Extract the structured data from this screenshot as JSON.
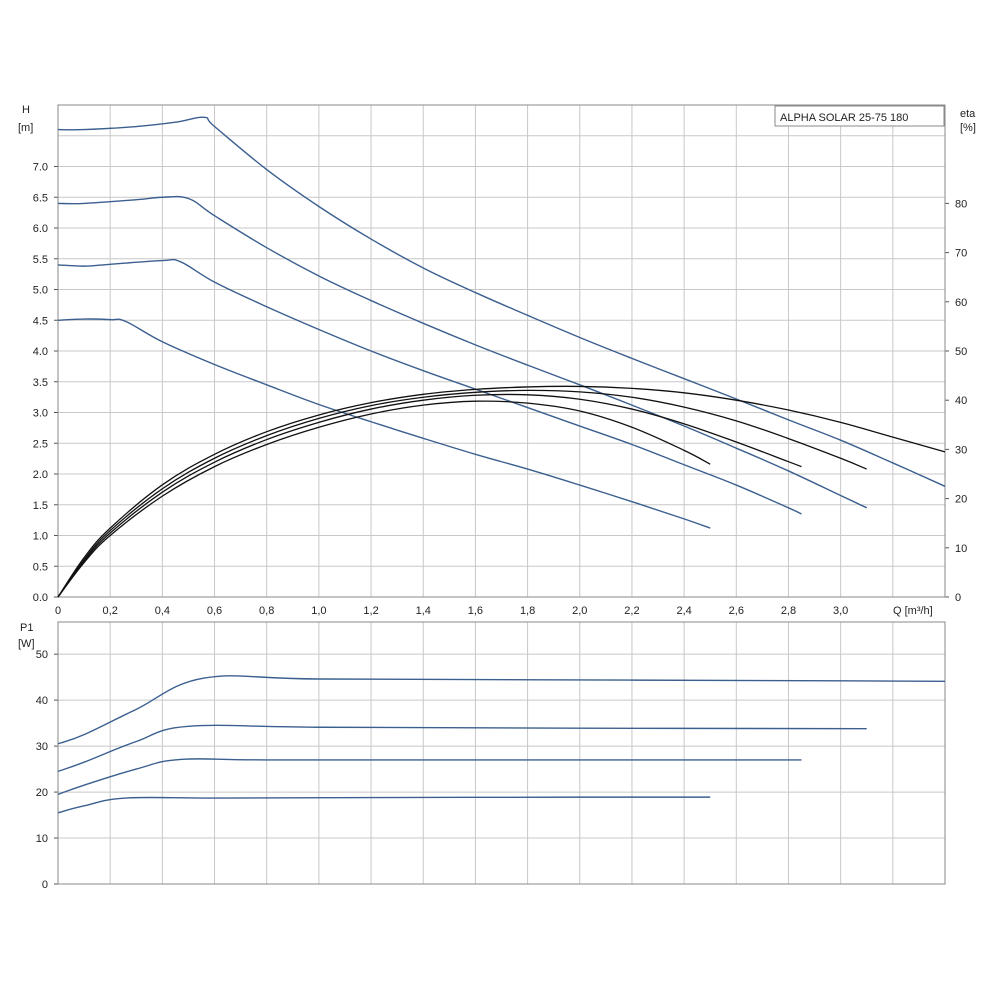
{
  "chart_data": [
    {
      "type": "line",
      "title": "ALPHA SOLAR 25-75  180",
      "xlabel": "Q [m³/h]",
      "ylabel_name": "H",
      "ylabel_unit": "[m]",
      "y2label_name": "eta",
      "y2label_unit": "[%]",
      "xlim": [
        0,
        3.4
      ],
      "ylim": [
        0,
        8.0
      ],
      "y2lim": [
        0,
        100
      ],
      "grid": true,
      "x_ticks": [
        "0",
        "0,2",
        "0,4",
        "0,6",
        "0,8",
        "1,0",
        "1,2",
        "1,4",
        "1,6",
        "1,8",
        "2,0",
        "2,2",
        "2,4",
        "2,6",
        "2,8",
        "3,0"
      ],
      "y_ticks": [
        "0.0",
        "0.5",
        "1.0",
        "1.5",
        "2.0",
        "2.5",
        "3.0",
        "3.5",
        "4.0",
        "4.5",
        "5.0",
        "5.5",
        "6.0",
        "6.5",
        "7.0"
      ],
      "y2_ticks": [
        "0",
        "10",
        "20",
        "30",
        "40",
        "50",
        "60",
        "70",
        "80"
      ],
      "series": [
        {
          "axis": "left",
          "color": "#3b5f8f",
          "points": [
            [
              0,
              4.5
            ],
            [
              0.1,
              4.52
            ],
            [
              0.2,
              4.51
            ],
            [
              0.26,
              4.48
            ],
            [
              0.4,
              4.15
            ],
            [
              0.6,
              3.78
            ],
            [
              0.8,
              3.45
            ],
            [
              1.0,
              3.13
            ],
            [
              1.2,
              2.85
            ],
            [
              1.4,
              2.58
            ],
            [
              1.6,
              2.32
            ],
            [
              1.8,
              2.08
            ],
            [
              2.0,
              1.82
            ],
            [
              2.2,
              1.55
            ],
            [
              2.4,
              1.27
            ],
            [
              2.5,
              1.12
            ]
          ]
        },
        {
          "axis": "left",
          "color": "#3b5f8f",
          "points": [
            [
              0,
              5.4
            ],
            [
              0.1,
              5.38
            ],
            [
              0.2,
              5.41
            ],
            [
              0.4,
              5.47
            ],
            [
              0.47,
              5.45
            ],
            [
              0.6,
              5.12
            ],
            [
              0.8,
              4.72
            ],
            [
              1.0,
              4.35
            ],
            [
              1.2,
              4.0
            ],
            [
              1.4,
              3.68
            ],
            [
              1.6,
              3.38
            ],
            [
              1.8,
              3.08
            ],
            [
              2.0,
              2.78
            ],
            [
              2.2,
              2.48
            ],
            [
              2.4,
              2.15
            ],
            [
              2.6,
              1.82
            ],
            [
              2.8,
              1.45
            ],
            [
              2.85,
              1.35
            ]
          ]
        },
        {
          "axis": "left",
          "color": "#3b5f8f",
          "points": [
            [
              0,
              6.4
            ],
            [
              0.1,
              6.4
            ],
            [
              0.3,
              6.46
            ],
            [
              0.4,
              6.5
            ],
            [
              0.5,
              6.48
            ],
            [
              0.6,
              6.2
            ],
            [
              0.8,
              5.68
            ],
            [
              1.0,
              5.22
            ],
            [
              1.2,
              4.82
            ],
            [
              1.4,
              4.45
            ],
            [
              1.6,
              4.1
            ],
            [
              1.8,
              3.77
            ],
            [
              2.0,
              3.45
            ],
            [
              2.2,
              3.12
            ],
            [
              2.4,
              2.78
            ],
            [
              2.6,
              2.42
            ],
            [
              2.8,
              2.05
            ],
            [
              3.0,
              1.65
            ],
            [
              3.1,
              1.45
            ]
          ]
        },
        {
          "axis": "left",
          "color": "#3b5f8f",
          "points": [
            [
              0,
              7.6
            ],
            [
              0.1,
              7.6
            ],
            [
              0.3,
              7.65
            ],
            [
              0.45,
              7.72
            ],
            [
              0.56,
              7.8
            ],
            [
              0.6,
              7.65
            ],
            [
              0.8,
              6.95
            ],
            [
              1.0,
              6.35
            ],
            [
              1.2,
              5.82
            ],
            [
              1.4,
              5.35
            ],
            [
              1.6,
              4.95
            ],
            [
              1.8,
              4.58
            ],
            [
              2.0,
              4.22
            ],
            [
              2.2,
              3.88
            ],
            [
              2.4,
              3.55
            ],
            [
              2.6,
              3.22
            ],
            [
              2.8,
              2.88
            ],
            [
              3.0,
              2.55
            ],
            [
              3.2,
              2.18
            ],
            [
              3.4,
              1.8
            ]
          ]
        },
        {
          "axis": "right",
          "color": "#111111",
          "points": [
            [
              0,
              0
            ],
            [
              0.1,
              7
            ],
            [
              0.2,
              12.5
            ],
            [
              0.4,
              20.5
            ],
            [
              0.6,
              26.5
            ],
            [
              0.8,
              31
            ],
            [
              1.0,
              34.5
            ],
            [
              1.2,
              37.2
            ],
            [
              1.4,
              39
            ],
            [
              1.6,
              39.8
            ],
            [
              1.8,
              39.4
            ],
            [
              2.0,
              37.8
            ],
            [
              2.2,
              34.5
            ],
            [
              2.4,
              29.8
            ],
            [
              2.5,
              27
            ]
          ]
        },
        {
          "axis": "right",
          "color": "#111111",
          "points": [
            [
              0,
              0
            ],
            [
              0.1,
              7.3
            ],
            [
              0.2,
              13
            ],
            [
              0.4,
              21.3
            ],
            [
              0.6,
              27.4
            ],
            [
              0.8,
              32
            ],
            [
              1.0,
              35.5
            ],
            [
              1.2,
              38.2
            ],
            [
              1.4,
              40
            ],
            [
              1.6,
              41
            ],
            [
              1.8,
              41.1
            ],
            [
              2.0,
              40.2
            ],
            [
              2.2,
              38.2
            ],
            [
              2.4,
              35.2
            ],
            [
              2.6,
              31.5
            ],
            [
              2.8,
              27.5
            ],
            [
              2.85,
              26.5
            ]
          ]
        },
        {
          "axis": "right",
          "color": "#111111",
          "points": [
            [
              0,
              0
            ],
            [
              0.1,
              7.6
            ],
            [
              0.2,
              13.5
            ],
            [
              0.4,
              22
            ],
            [
              0.6,
              28.2
            ],
            [
              0.8,
              32.8
            ],
            [
              1.0,
              36.3
            ],
            [
              1.2,
              38.9
            ],
            [
              1.4,
              40.6
            ],
            [
              1.6,
              41.6
            ],
            [
              1.8,
              42
            ],
            [
              2.0,
              41.7
            ],
            [
              2.2,
              40.6
            ],
            [
              2.4,
              38.6
            ],
            [
              2.6,
              35.8
            ],
            [
              2.8,
              32.2
            ],
            [
              3.0,
              28.2
            ],
            [
              3.1,
              26
            ]
          ]
        },
        {
          "axis": "right",
          "color": "#111111",
          "points": [
            [
              0,
              0
            ],
            [
              0.1,
              8
            ],
            [
              0.2,
              14
            ],
            [
              0.4,
              22.8
            ],
            [
              0.6,
              29
            ],
            [
              0.8,
              33.6
            ],
            [
              1.0,
              37
            ],
            [
              1.2,
              39.5
            ],
            [
              1.4,
              41.2
            ],
            [
              1.6,
              42.2
            ],
            [
              1.8,
              42.7
            ],
            [
              2.0,
              42.8
            ],
            [
              2.2,
              42.4
            ],
            [
              2.4,
              41.5
            ],
            [
              2.6,
              40
            ],
            [
              2.8,
              38
            ],
            [
              3.0,
              35.5
            ],
            [
              3.2,
              32.5
            ],
            [
              3.4,
              29.5
            ]
          ]
        }
      ]
    },
    {
      "type": "line",
      "ylabel_name": "P1",
      "ylabel_unit": "[W]",
      "xlim": [
        0,
        3.4
      ],
      "ylim": [
        0,
        57
      ],
      "grid": true,
      "y_ticks": [
        "0",
        "10",
        "20",
        "30",
        "40",
        "50"
      ],
      "series": [
        {
          "axis": "left",
          "color": "#3b5f8f",
          "points": [
            [
              0,
              15.5
            ],
            [
              0.1,
              17
            ],
            [
              0.26,
              18.7
            ],
            [
              0.6,
              18.7
            ],
            [
              1.2,
              18.8
            ],
            [
              2.0,
              18.9
            ],
            [
              2.5,
              18.9
            ]
          ]
        },
        {
          "axis": "left",
          "color": "#3b5f8f",
          "points": [
            [
              0,
              19.5
            ],
            [
              0.1,
              21.5
            ],
            [
              0.3,
              25
            ],
            [
              0.47,
              27.1
            ],
            [
              0.8,
              27
            ],
            [
              1.6,
              27
            ],
            [
              2.4,
              27
            ],
            [
              2.85,
              27
            ]
          ]
        },
        {
          "axis": "left",
          "color": "#3b5f8f",
          "points": [
            [
              0,
              24.5
            ],
            [
              0.1,
              26.5
            ],
            [
              0.3,
              31
            ],
            [
              0.5,
              34.3
            ],
            [
              1.0,
              34.1
            ],
            [
              2.0,
              33.9
            ],
            [
              3.1,
              33.8
            ]
          ]
        },
        {
          "axis": "left",
          "color": "#3b5f8f",
          "points": [
            [
              0,
              30.5
            ],
            [
              0.1,
              32.5
            ],
            [
              0.3,
              38
            ],
            [
              0.56,
              44.8
            ],
            [
              1.0,
              44.6
            ],
            [
              2.0,
              44.4
            ],
            [
              3.0,
              44.2
            ],
            [
              3.4,
              44.1
            ]
          ]
        }
      ]
    }
  ]
}
